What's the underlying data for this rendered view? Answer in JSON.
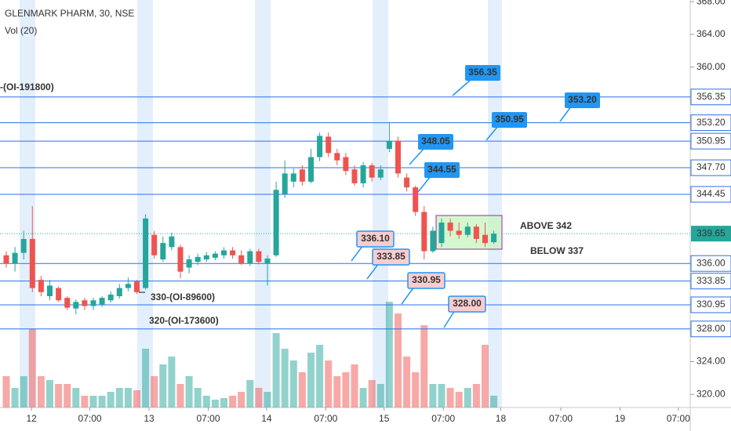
{
  "chart_data": {
    "type": "candlestick",
    "title": "GLENMARK PHARM, 30, NSE",
    "subtitle": "Vol (20)",
    "up_color": "#26a69a",
    "down_color": "#ef5350",
    "level_color": "#2f6fe8",
    "x": [
      0,
      1,
      2,
      3,
      4,
      5,
      6,
      7,
      8,
      9,
      10,
      11,
      12,
      13,
      14,
      15,
      16,
      17,
      18,
      19,
      20,
      21,
      22,
      23,
      24,
      25,
      26,
      27,
      28,
      29,
      30,
      31,
      32,
      33,
      34,
      35,
      36,
      37,
      38,
      39,
      40,
      41,
      42,
      43,
      44,
      45,
      46,
      47,
      48,
      49,
      50,
      51,
      52,
      53,
      54,
      55,
      56
    ],
    "open": [
      337,
      336,
      337.3,
      339,
      334,
      332,
      333,
      331.8,
      330.5,
      331.5,
      330.8,
      331,
      331.5,
      332,
      333,
      333.8,
      333,
      339.5,
      336.5,
      338,
      338,
      335.5,
      336.2,
      336.5,
      336.7,
      337,
      337.6,
      337,
      336,
      337.5,
      336,
      337,
      344.5,
      346,
      347.5,
      346,
      349,
      351.5,
      349.5,
      349,
      347.5,
      345.8,
      348,
      346.5,
      350,
      351,
      346.5,
      345.3,
      342.3,
      337.5,
      338.5,
      341,
      340,
      339.5,
      340.5,
      339.5,
      338.6
    ],
    "high": [
      337.5,
      338,
      340,
      343,
      334.5,
      334,
      333.2,
      332,
      331.6,
      331.8,
      331.8,
      332,
      332.6,
      333.5,
      334.3,
      334,
      342,
      340,
      339.3,
      339.8,
      338.3,
      337,
      337.2,
      337.4,
      337.5,
      338,
      338,
      337.6,
      337.8,
      337.8,
      337,
      346,
      348.6,
      347.6,
      348,
      350,
      352,
      352,
      350,
      349.5,
      348,
      348.4,
      348.3,
      348,
      353.3,
      351.5,
      347,
      345.5,
      343,
      340.5,
      341.5,
      341.5,
      341,
      341,
      340.8,
      341,
      340
    ],
    "low": [
      335.5,
      335,
      336.5,
      332.5,
      332,
      331.5,
      331.3,
      330.3,
      329.8,
      330.3,
      330.3,
      330.7,
      331.2,
      331.7,
      332.6,
      332.3,
      332.8,
      336.6,
      336.2,
      337.6,
      334.2,
      334.8,
      335.8,
      336.2,
      336.4,
      336.6,
      336.6,
      335.8,
      335.7,
      335.9,
      333.3,
      336.8,
      344,
      345.3,
      345.5,
      345.8,
      348.5,
      349,
      348,
      346.8,
      345.5,
      345.3,
      346,
      346.2,
      349.6,
      346.5,
      344.8,
      341.8,
      336.5,
      337.3,
      338,
      339.3,
      339,
      339.2,
      338.5,
      338,
      338.4
    ],
    "close": [
      336,
      337.3,
      339,
      333,
      332.5,
      333.3,
      331.5,
      330.6,
      331.3,
      330.8,
      331.5,
      331.8,
      332.2,
      333,
      333.5,
      332.5,
      341.5,
      337,
      338.5,
      339.3,
      335,
      336.5,
      336.8,
      337,
      337.2,
      337.6,
      337,
      336,
      337.5,
      336.2,
      336.6,
      345,
      347,
      347,
      346,
      349,
      351.6,
      349.5,
      348.6,
      347.3,
      345.8,
      348,
      346.5,
      347.5,
      351,
      347,
      345.3,
      342.3,
      337.5,
      340,
      341,
      340,
      339.5,
      340.5,
      339,
      338.5,
      339.65
    ],
    "volume": [
      40,
      25,
      40,
      100,
      40,
      35,
      30,
      30,
      25,
      15,
      15,
      15,
      20,
      25,
      25,
      22,
      75,
      40,
      55,
      65,
      30,
      40,
      25,
      15,
      10,
      12,
      15,
      20,
      35,
      25,
      20,
      95,
      75,
      60,
      45,
      70,
      80,
      60,
      40,
      45,
      55,
      25,
      35,
      30,
      135,
      120,
      65,
      45,
      105,
      30,
      30,
      25,
      20,
      25,
      30,
      80,
      15
    ],
    "xlim": [
      -0.72,
      78.56
    ],
    "xticks": [
      {
        "value": 2.9,
        "label": "12"
      },
      {
        "value": 9.6,
        "label": "07:00"
      },
      {
        "value": 16.4,
        "label": "13"
      },
      {
        "value": 23.2,
        "label": "07:00"
      },
      {
        "value": 29.9,
        "label": "14"
      },
      {
        "value": 36.7,
        "label": "07:00"
      },
      {
        "value": 43.4,
        "label": "15"
      },
      {
        "value": 50.2,
        "label": "07:00"
      },
      {
        "value": 56.8,
        "label": "18"
      },
      {
        "value": 63.7,
        "label": "07:00"
      },
      {
        "value": 70.5,
        "label": "19"
      },
      {
        "value": 77.2,
        "label": "07:00"
      }
    ],
    "ylim": [
      318.4,
      368.2
    ],
    "yticks": [
      {
        "value": 368,
        "label": "368.00"
      },
      {
        "value": 364,
        "label": "364.00"
      },
      {
        "value": 360,
        "label": "360.00"
      },
      {
        "value": 324,
        "label": "324.00"
      },
      {
        "value": 320,
        "label": "320.00"
      }
    ],
    "levels": [
      {
        "value": 356.35,
        "label": "356.35"
      },
      {
        "value": 353.2,
        "label": "353.20"
      },
      {
        "value": 350.95,
        "label": "350.95"
      },
      {
        "value": 347.7,
        "label": "347.70"
      },
      {
        "value": 344.45,
        "label": "344.45"
      },
      {
        "value": 336,
        "label": "336.00"
      },
      {
        "value": 333.85,
        "label": "333.85"
      },
      {
        "value": 330.95,
        "label": "330.95"
      },
      {
        "value": 328,
        "label": "328.00"
      }
    ],
    "last_price": {
      "value": 339.65,
      "label": "339.65"
    },
    "callouts_up": [
      "356.35",
      "350.95",
      "353.20",
      "348.05",
      "344.55"
    ],
    "callouts_down": [
      "336.10",
      "333.85",
      "330.95",
      "328.00"
    ],
    "oi_labels": [
      "-(OI-191800)",
      "330-(OI-89600)",
      "320-(OI-173600)"
    ],
    "zone_labels": [
      "ABOVE 342",
      "BELOW 337"
    ]
  }
}
